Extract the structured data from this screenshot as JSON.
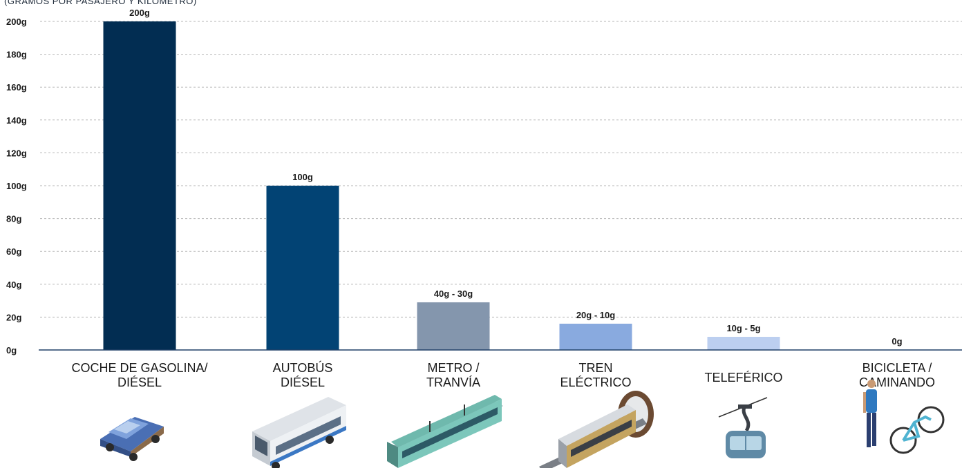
{
  "chart_data": {
    "type": "bar",
    "ylabel": "(GRAMOS POR PASAJERO Y KILÓMETRO)",
    "ylim": [
      0,
      200
    ],
    "yticks": [
      0,
      20,
      40,
      60,
      80,
      100,
      120,
      140,
      160,
      180,
      200
    ],
    "ytick_labels": [
      "0g",
      "20g",
      "40g",
      "60g",
      "80g",
      "100g",
      "120g",
      "140g",
      "160g",
      "180g",
      "200g"
    ],
    "grid": true,
    "categories": [
      [
        "COCHE DE GASOLINA/",
        "DIÉSEL"
      ],
      [
        "AUTOBÚS",
        "DIÉSEL"
      ],
      [
        "METRO /",
        "TRANVÍA"
      ],
      [
        "TREN",
        "ELÉCTRICO"
      ],
      [
        "TELEFÉRICO"
      ],
      [
        "BICICLETA /",
        "CAMINANDO"
      ]
    ],
    "values": [
      200,
      100,
      29,
      16,
      8,
      0
    ],
    "data_labels": [
      "200g",
      "100g",
      "40g - 30g",
      "20g - 10g",
      "10g - 5g",
      "0g"
    ],
    "colors": [
      "#022d52",
      "#024374",
      "#8496ad",
      "#89aadf",
      "#bccff0",
      "#dbe6f7"
    ],
    "icons": [
      "suv-car-icon",
      "city-bus-icon",
      "tram-icon",
      "electric-train-icon",
      "cable-car-icon",
      "pedestrian-bicycle-icon"
    ]
  }
}
